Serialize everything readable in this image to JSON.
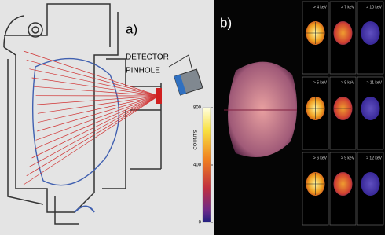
{
  "panel_a": {
    "label": "a)",
    "detector": "DETECTOR",
    "pinhole": "PINHOLE"
  },
  "panel_b": {
    "label": "b)",
    "colorbar": {
      "label": "COUNTS",
      "range": [
        0,
        800
      ],
      "ticks": [
        800,
        400,
        0
      ]
    },
    "energy_panels": [
      [
        "> 4 keV",
        "> 7 keV",
        "> 10 keV"
      ],
      [
        "> 5 keV",
        "> 8 keV",
        "> 11 keV"
      ],
      [
        "> 6 keV",
        "> 9 keV",
        "> 12 keV"
      ]
    ]
  }
}
